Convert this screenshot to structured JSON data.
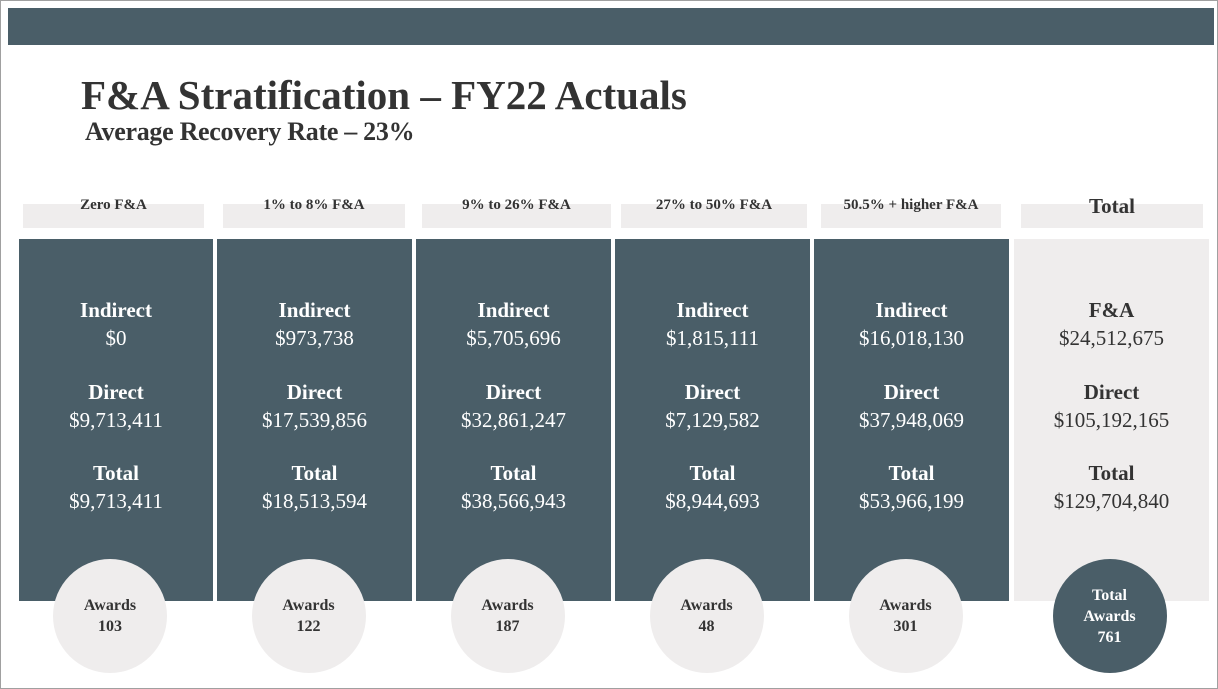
{
  "header": {
    "title": "F&A Stratification – FY22 Actuals",
    "subtitle": "Average Recovery Rate – 23%"
  },
  "columns": [
    {
      "header": "Zero F&A",
      "sections": [
        {
          "label": "Indirect",
          "value": "$0"
        },
        {
          "label": "Direct",
          "value": "$9,713,411"
        },
        {
          "label": "Total",
          "value": "$9,713,411"
        }
      ],
      "awards": {
        "label": [
          "Awards"
        ],
        "value": "103"
      }
    },
    {
      "header": "1% to 8% F&A",
      "sections": [
        {
          "label": "Indirect",
          "value": "$973,738"
        },
        {
          "label": "Direct",
          "value": "$17,539,856"
        },
        {
          "label": "Total",
          "value": "$18,513,594"
        }
      ],
      "awards": {
        "label": [
          "Awards"
        ],
        "value": "122"
      }
    },
    {
      "header": "9% to 26% F&A",
      "sections": [
        {
          "label": "Indirect",
          "value": "$5,705,696"
        },
        {
          "label": "Direct",
          "value": "$32,861,247"
        },
        {
          "label": "Total",
          "value": "$38,566,943"
        }
      ],
      "awards": {
        "label": [
          "Awards"
        ],
        "value": "187"
      }
    },
    {
      "header": "27% to 50% F&A",
      "sections": [
        {
          "label": "Indirect",
          "value": "$1,815,111"
        },
        {
          "label": "Direct",
          "value": "$7,129,582"
        },
        {
          "label": "Total",
          "value": "$8,944,693"
        }
      ],
      "awards": {
        "label": [
          "Awards"
        ],
        "value": "48"
      }
    },
    {
      "header": "50.5% + higher F&A",
      "sections": [
        {
          "label": "Indirect",
          "value": "$16,018,130"
        },
        {
          "label": "Direct",
          "value": "$37,948,069"
        },
        {
          "label": "Total",
          "value": "$53,966,199"
        }
      ],
      "awards": {
        "label": [
          "Awards"
        ],
        "value": "301"
      }
    },
    {
      "header": "Total",
      "sections": [
        {
          "label": "F&A",
          "value": "$24,512,675"
        },
        {
          "label": "Direct",
          "value": "$105,192,165"
        },
        {
          "label": "Total",
          "value": "$129,704,840"
        }
      ],
      "awards": {
        "label": [
          "Total",
          "Awards"
        ],
        "value": "761"
      }
    }
  ]
}
